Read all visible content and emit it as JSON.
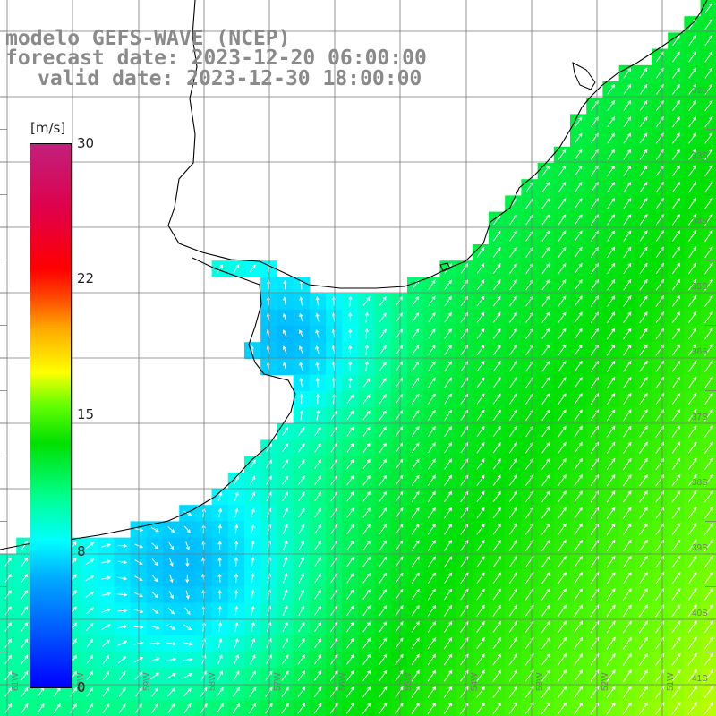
{
  "titles": {
    "model": "modelo GEFS-WAVE (NCEP)",
    "forecast": "forecast date: 2023-12-20 06:00:00",
    "valid": "valid date: 2023-12-30 18:00:00"
  },
  "legend": {
    "unit": "[m/s]",
    "ticks": [
      "30",
      "22",
      "15",
      "8",
      "0"
    ],
    "min": 0,
    "max": 30
  },
  "lat_labels": [
    "32S",
    "33S",
    "34S",
    "35S",
    "36S",
    "37S",
    "38S",
    "39S",
    "40S",
    "41S"
  ],
  "lon_labels": [
    "61W",
    "60W",
    "59W",
    "58W",
    "57W",
    "56W",
    "55W",
    "54W",
    "53W",
    "52W",
    "51W"
  ],
  "colors": {
    "land": "#ffffff",
    "grid": "#7a7a7a",
    "coast": "#000000",
    "arrow": "#ffffff",
    "title": "#8a8a8a"
  }
}
